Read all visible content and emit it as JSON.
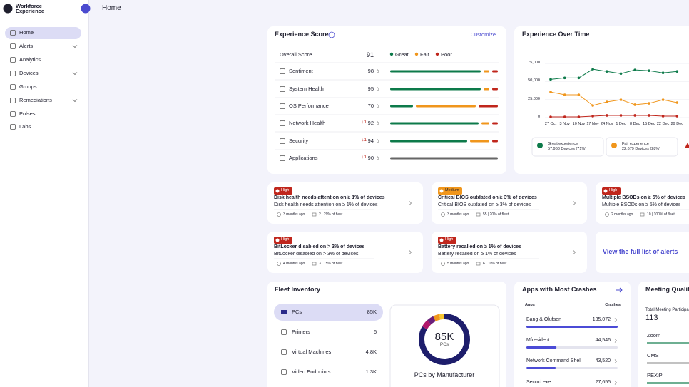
{
  "sidebar": {
    "brand": [
      "Workforce",
      "Experience"
    ],
    "nav": [
      "Home",
      "Alerts",
      "Analytics",
      "Devices",
      "Groups",
      "Remediations",
      "Pulses",
      "Labs"
    ]
  },
  "header": {
    "title": "Home"
  },
  "experience_score": {
    "title": "Experience Score",
    "action": "Customize",
    "legend": [
      "Great",
      "Fair",
      "Poor"
    ],
    "overall": {
      "label": "Overall Score",
      "value": 91
    },
    "rows": [
      {
        "label": "Sentiment",
        "value": 98
      },
      {
        "label": "System Health",
        "value": 95
      },
      {
        "label": "OS Performance",
        "value": 70
      },
      {
        "label": "Network Health",
        "change": "↓1",
        "value": 92
      },
      {
        "label": "Security",
        "change": "↓1",
        "value": 94
      },
      {
        "label": "Applications",
        "change": "↓1",
        "value": 90
      }
    ]
  },
  "chart_data": {
    "type": "line",
    "title": "Experience Over Time",
    "categories": [
      "27 Oct",
      "3 Nov",
      "10 Nov",
      "17 Nov",
      "24 Nov",
      "1 Dec",
      "8 Dec",
      "15 Dec",
      "22 Dec",
      "29 Dec"
    ],
    "series": [
      {
        "name": "Great experience",
        "summary": "57,968 Devices (71%)",
        "color": "#0d7a4a",
        "values": [
          53000,
          55000,
          55000,
          67000,
          64000,
          61000,
          66000,
          65000,
          62000,
          64000
        ]
      },
      {
        "name": "Fair experience",
        "summary": "22,679 Devices (28%)",
        "color": "#f0961c",
        "values": [
          35500,
          31600,
          31600,
          16800,
          21700,
          24700,
          17800,
          19700,
          24700,
          20700
        ]
      },
      {
        "color": "#c0261c",
        "values": [
          1000,
          1000,
          1000,
          2000,
          3000,
          3000,
          3000,
          3000,
          2000,
          2000
        ]
      }
    ],
    "ylim": [
      0,
      80000
    ],
    "yticks": [
      0,
      {
        "value": 25000,
        "label": "25,000"
      },
      {
        "value": 50000,
        "label": "50,000"
      },
      {
        "value": 75000,
        "label": "75,000"
      }
    ],
    "grid": true
  },
  "alerts": {
    "items": [
      {
        "severity": "High",
        "title": "Disk health needs attention on ≥ 1% of devices",
        "subtitle": "Disk health needs attention on ≥ 1% of devices",
        "age": "3 months ago",
        "devices": "2 | 29% of fleet"
      },
      {
        "severity": "Medium",
        "title": "Critical BIOS outdated on ≥ 3% of devices",
        "subtitle": "Critical BIOS outdated on ≥ 3% of devices",
        "age": "3 months ago",
        "devices": "55 | 20% of fleet"
      },
      {
        "severity": "High",
        "title": "Multiple BSODs on ≥ 5% of devices",
        "subtitle": "Multiple BSODs on ≥ 5% of devices",
        "age": "2 months ago",
        "devices": "10 | 100% of fleet"
      },
      {
        "severity": "High",
        "title": "BitLocker disabled on > 3% of devices",
        "subtitle": "BitLocker disabled on > 3% of devices",
        "age": "4 months ago",
        "devices": "3 | 15% of fleet"
      },
      {
        "severity": "High",
        "title": "Battery recalled on ≥ 1% of devices",
        "subtitle": "Battery recalled on ≥ 1% of devices",
        "age": "5 months ago",
        "devices": "6 | 10% of fleet"
      }
    ],
    "view_all": "View the full list of alerts"
  },
  "fleet": {
    "title": "Fleet Inventory",
    "items": [
      {
        "label": "PCs",
        "value": "85K"
      },
      {
        "label": "Printers",
        "value": "6"
      },
      {
        "label": "Virtual Machines",
        "value": "4.8K"
      },
      {
        "label": "Video Endpoints",
        "value": "1.3K"
      }
    ],
    "donut": {
      "value": "85K",
      "unit": "PCs",
      "caption": "PCs by Manufacturer"
    }
  },
  "apps": {
    "title": "Apps with Most Crashes",
    "col_app": "Apps",
    "col_crashes": "Crashes",
    "rows": [
      {
        "name": "Bang & Olufsen",
        "crashes": {
          "value": 135072,
          "label": "135,072"
        }
      },
      {
        "name": "Mfresident",
        "crashes": {
          "value": 44546,
          "label": "44,546"
        }
      },
      {
        "name": "Network Command Shell",
        "crashes": {
          "value": 43520,
          "label": "43,520"
        }
      },
      {
        "name": "Secocl.exe",
        "crashes": {
          "value": 27655,
          "label": "27,655"
        }
      }
    ]
  },
  "meeting": {
    "title": "Meeting Quality",
    "metric": "Total Meeting Participants",
    "value": 113,
    "rows": [
      "Zoom",
      "CMS",
      "PEXiP"
    ]
  }
}
